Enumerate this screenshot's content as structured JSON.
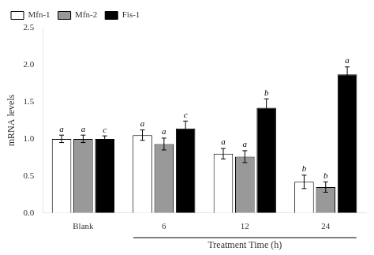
{
  "chart_data": {
    "type": "bar",
    "categories": [
      "Blank",
      "6",
      "12",
      "24"
    ],
    "series": [
      {
        "name": "Mfn-1",
        "color": "white",
        "values": [
          1.0,
          1.05,
          0.8,
          0.42
        ],
        "errors": [
          0.05,
          0.07,
          0.07,
          0.09
        ],
        "annotations": [
          "a",
          "a",
          "a",
          "b"
        ]
      },
      {
        "name": "Mfn-2",
        "color": "#999999",
        "values": [
          1.0,
          0.93,
          0.76,
          0.35
        ],
        "errors": [
          0.05,
          0.08,
          0.08,
          0.07
        ],
        "annotations": [
          "a",
          "a",
          "a",
          "b"
        ]
      },
      {
        "name": "Fis-1",
        "color": "black",
        "values": [
          1.0,
          1.14,
          1.42,
          1.87
        ],
        "errors": [
          0.04,
          0.1,
          0.12,
          0.1
        ],
        "annotations": [
          "c",
          "c",
          "b",
          "a"
        ]
      }
    ],
    "ylabel": "mRNA levels",
    "xlabel": "Treatment Time (h)",
    "ylim": [
      0,
      2.5
    ],
    "yticks": [
      {
        "value": 0,
        "label": "0.0"
      },
      {
        "value": 0.5,
        "label": "0.5"
      },
      {
        "value": 1.0,
        "label": "1.0"
      },
      {
        "value": 1.5,
        "label": "1.5"
      },
      {
        "value": 2.0,
        "label": "2.0"
      },
      {
        "value": 2.5,
        "label": "2.5"
      }
    ],
    "grid": false,
    "legend": "upper left"
  }
}
